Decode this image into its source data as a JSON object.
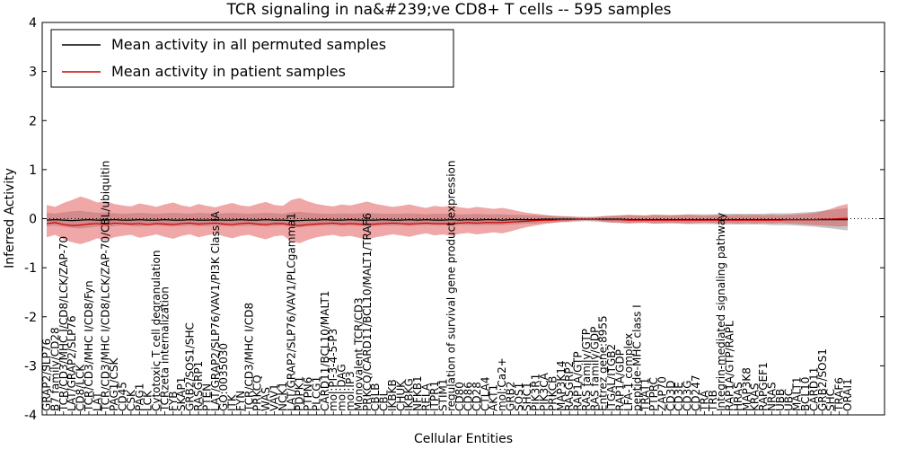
{
  "title": "TCR signaling in na&#239;ve CD8+ T cells -- 595 samples",
  "legend": {
    "permuted": "Mean activity in all permuted samples",
    "patient": "Mean activity in patient samples"
  },
  "axes": {
    "ylabel": "Inferred Activity",
    "xlabel": "Cellular Entities",
    "yticks": [
      4,
      3,
      2,
      1,
      0,
      -1,
      -2,
      -3,
      -4
    ]
  },
  "colors": {
    "permuted_line": "#000000",
    "patient_line": "#cc0000",
    "permuted_band": "#bbbbbb",
    "patient_band": "#e05050"
  },
  "chart_data": {
    "type": "line",
    "title": "TCR signaling in na&#239;ve CD8+ T cells -- 595 samples",
    "xlabel": "Cellular Entities",
    "ylabel": "Inferred Activity",
    "ylim": [
      -4,
      4
    ],
    "grid": false,
    "legend_position": "upper left",
    "categories": [
      "GRAP2/SLP76",
      "B7 family/CD28",
      "TCR/CD3/MHC I/CD8/LCK/ZAP-70",
      "LAT/GRAP2/SLP76",
      "CD8/LCK",
      "TCR/CD3/MHC I/CD8/Fyn",
      "LAT",
      "TCR/CD3/MHC I/CD8/LCK/ZAP-70/CBL/ubiquitin",
      "PAG1/CSK",
      "CD45",
      "CSK",
      "PAG1",
      "LCK",
      "Cytotoxic T cell degranulation",
      "TCRzeta internalization",
      "FYB",
      "SKAP1",
      "GRB2/SOS1/SHC",
      "RASGRP1",
      "PTEN",
      "LAT/GRAP2/SLP76/VAV1/PI3K Class IA",
      "GO:0035030",
      "ITK",
      "FYN",
      "TCR/CD3/MHC I/CD8",
      "PRKCQ",
      "WAS",
      "VAV1",
      "NCK1",
      "LAT/GRAP2/SLP76/VAV1/PLCgamma1",
      "PDPK1",
      "PTPN6",
      "PLCG1",
      "CARD11/BCL10/MALT1",
      "mol:PI-3-4-5-P3",
      "mol:DAG",
      "mol:IP3",
      "Monovalent TCR/CD3",
      "PRKCQ/CARD11/BCL10/MALT1/TRAF6",
      "CBLB",
      "CBL",
      "IKBKB",
      "CHUK",
      "IKBKG",
      "NFKB1",
      "RELA",
      "ITPR1",
      "STIM1",
      "regulation of survival gene product expression",
      "CD80",
      "CD86",
      "CD28",
      "CTLA4",
      "AKT1",
      "mol:Ca2+",
      "GRB2",
      "SOS1",
      "SHC1",
      "PIK3R1",
      "PIK3CA",
      "PRKCB",
      "MAP3K14",
      "RASGRP2",
      "RAP1A/GTP",
      "RAS family/GTP",
      "RAS family/GDP",
      "Entrez gene:8955",
      "ITGAL/ITGB2",
      "RAP1A/GDP",
      "LFA-1 complex",
      "peptide-MHC class I",
      "TRAT1",
      "PTPRC",
      "ZAP70",
      "CD3D",
      "CD3E",
      "CD3G",
      "CD247",
      "TRA",
      "TRB",
      "Integrin-mediated signaling pathway",
      "RAP1A/GTP/RAPL",
      "HRAS",
      "MAP3K8",
      "KRAS",
      "RAPGEF1",
      "NRAS",
      "UBB",
      "UBC",
      "MALT1",
      "BCL10",
      "CARD11",
      "GRB2/SOS1",
      "SHC",
      "TRAF6",
      "ORAI1"
    ],
    "series": [
      {
        "name": "Mean activity in all permuted samples",
        "color": "#000000",
        "values": [
          -0.03,
          -0.02,
          -0.03,
          -0.04,
          -0.03,
          -0.02,
          -0.03,
          -0.03,
          -0.02,
          -0.03,
          -0.03,
          -0.02,
          -0.03,
          -0.03,
          -0.02,
          -0.03,
          -0.03,
          -0.02,
          -0.03,
          -0.03,
          -0.02,
          -0.03,
          -0.03,
          -0.02,
          -0.03,
          -0.03,
          -0.02,
          -0.03,
          -0.03,
          -0.04,
          -0.04,
          -0.03,
          -0.03,
          -0.02,
          -0.03,
          -0.03,
          -0.02,
          -0.03,
          -0.03,
          -0.03,
          -0.02,
          -0.03,
          -0.03,
          -0.02,
          -0.03,
          -0.02,
          -0.03,
          -0.03,
          -0.02,
          -0.03,
          -0.02,
          -0.03,
          -0.02,
          -0.02,
          -0.03,
          -0.02,
          -0.02,
          -0.02,
          -0.02,
          -0.01,
          -0.01,
          -0.01,
          -0.01,
          -0.01,
          -0.01,
          -0.01,
          -0.01,
          -0.01,
          -0.01,
          -0.02,
          -0.02,
          -0.02,
          -0.02,
          -0.02,
          -0.02,
          -0.02,
          -0.02,
          -0.02,
          -0.02,
          -0.02,
          -0.02,
          -0.02,
          -0.02,
          -0.02,
          -0.02,
          -0.02,
          -0.02,
          -0.02,
          -0.02,
          -0.02,
          -0.02,
          -0.02,
          -0.02,
          -0.02,
          -0.02,
          -0.02
        ]
      },
      {
        "name": "Mean activity in patient samples",
        "color": "#cc0000",
        "values": [
          -0.1,
          -0.08,
          -0.12,
          -0.14,
          -0.13,
          -0.11,
          -0.1,
          -0.12,
          -0.09,
          -0.1,
          -0.11,
          -0.1,
          -0.12,
          -0.1,
          -0.11,
          -0.12,
          -0.1,
          -0.09,
          -0.11,
          -0.1,
          -0.09,
          -0.11,
          -0.12,
          -0.1,
          -0.09,
          -0.11,
          -0.12,
          -0.1,
          -0.1,
          -0.13,
          -0.14,
          -0.12,
          -0.11,
          -0.1,
          -0.09,
          -0.11,
          -0.1,
          -0.11,
          -0.12,
          -0.11,
          -0.1,
          -0.09,
          -0.1,
          -0.11,
          -0.1,
          -0.09,
          -0.1,
          -0.1,
          -0.1,
          -0.09,
          -0.08,
          -0.09,
          -0.08,
          -0.08,
          -0.08,
          -0.07,
          -0.06,
          -0.05,
          -0.04,
          -0.03,
          -0.03,
          -0.02,
          -0.02,
          -0.01,
          -0.01,
          -0.01,
          -0.02,
          -0.02,
          -0.02,
          -0.03,
          -0.03,
          -0.03,
          -0.03,
          -0.03,
          -0.03,
          -0.03,
          -0.03,
          -0.03,
          -0.03,
          -0.03,
          -0.03,
          -0.03,
          -0.03,
          -0.03,
          -0.03,
          -0.03,
          -0.03,
          -0.03,
          -0.02,
          -0.02,
          -0.02,
          -0.02,
          -0.01,
          -0.01,
          0.0,
          0.01
        ]
      }
    ],
    "bands": [
      {
        "name": "permuted-samples-confidence-band",
        "color": "#bbbbbb",
        "opacity": 0.85,
        "upper": [
          0.12,
          0.1,
          0.13,
          0.15,
          0.16,
          0.14,
          0.12,
          0.13,
          0.11,
          0.1,
          0.11,
          0.12,
          0.11,
          0.1,
          0.11,
          0.12,
          0.11,
          0.1,
          0.12,
          0.11,
          0.1,
          0.11,
          0.12,
          0.11,
          0.1,
          0.11,
          0.12,
          0.11,
          0.1,
          0.13,
          0.14,
          0.12,
          0.11,
          0.1,
          0.1,
          0.11,
          0.1,
          0.11,
          0.12,
          0.11,
          0.1,
          0.1,
          0.1,
          0.11,
          0.1,
          0.09,
          0.1,
          0.1,
          0.1,
          0.09,
          0.09,
          0.1,
          0.09,
          0.09,
          0.09,
          0.08,
          0.08,
          0.07,
          0.07,
          0.06,
          0.06,
          0.05,
          0.05,
          0.04,
          0.04,
          0.04,
          0.05,
          0.06,
          0.06,
          0.07,
          0.07,
          0.07,
          0.08,
          0.08,
          0.08,
          0.08,
          0.09,
          0.09,
          0.09,
          0.09,
          0.1,
          0.1,
          0.1,
          0.1,
          0.1,
          0.1,
          0.11,
          0.11,
          0.11,
          0.12,
          0.13,
          0.14,
          0.16,
          0.18,
          0.2,
          0.22
        ],
        "lower": [
          -0.16,
          -0.14,
          -0.17,
          -0.19,
          -0.2,
          -0.18,
          -0.16,
          -0.17,
          -0.15,
          -0.14,
          -0.15,
          -0.16,
          -0.15,
          -0.14,
          -0.15,
          -0.16,
          -0.15,
          -0.14,
          -0.16,
          -0.15,
          -0.14,
          -0.15,
          -0.16,
          -0.15,
          -0.14,
          -0.15,
          -0.16,
          -0.15,
          -0.14,
          -0.17,
          -0.18,
          -0.16,
          -0.15,
          -0.14,
          -0.14,
          -0.15,
          -0.14,
          -0.15,
          -0.16,
          -0.15,
          -0.14,
          -0.14,
          -0.14,
          -0.15,
          -0.14,
          -0.13,
          -0.14,
          -0.14,
          -0.14,
          -0.13,
          -0.13,
          -0.14,
          -0.13,
          -0.13,
          -0.13,
          -0.12,
          -0.11,
          -0.1,
          -0.1,
          -0.09,
          -0.08,
          -0.07,
          -0.07,
          -0.06,
          -0.05,
          -0.06,
          -0.07,
          -0.08,
          -0.08,
          -0.09,
          -0.09,
          -0.09,
          -0.1,
          -0.1,
          -0.1,
          -0.1,
          -0.11,
          -0.11,
          -0.11,
          -0.11,
          -0.12,
          -0.12,
          -0.12,
          -0.12,
          -0.12,
          -0.12,
          -0.13,
          -0.13,
          -0.13,
          -0.14,
          -0.15,
          -0.16,
          -0.18,
          -0.2,
          -0.22,
          -0.24
        ]
      },
      {
        "name": "patient-samples-confidence-band",
        "color": "#e05050",
        "opacity": 0.5,
        "upper": [
          0.28,
          0.24,
          0.32,
          0.38,
          0.45,
          0.4,
          0.33,
          0.36,
          0.3,
          0.27,
          0.25,
          0.31,
          0.28,
          0.24,
          0.29,
          0.33,
          0.27,
          0.24,
          0.3,
          0.26,
          0.23,
          0.28,
          0.32,
          0.27,
          0.25,
          0.3,
          0.34,
          0.28,
          0.26,
          0.38,
          0.42,
          0.35,
          0.3,
          0.27,
          0.25,
          0.29,
          0.27,
          0.31,
          0.35,
          0.3,
          0.27,
          0.24,
          0.26,
          0.29,
          0.25,
          0.22,
          0.26,
          0.24,
          0.27,
          0.23,
          0.21,
          0.24,
          0.22,
          0.2,
          0.22,
          0.19,
          0.15,
          0.12,
          0.1,
          0.08,
          0.06,
          0.05,
          0.04,
          0.03,
          0.02,
          0.03,
          0.05,
          0.06,
          0.07,
          0.08,
          0.07,
          0.06,
          0.08,
          0.07,
          0.06,
          0.07,
          0.08,
          0.07,
          0.06,
          0.07,
          0.08,
          0.07,
          0.08,
          0.07,
          0.08,
          0.07,
          0.08,
          0.07,
          0.08,
          0.09,
          0.1,
          0.12,
          0.15,
          0.2,
          0.26,
          0.3
        ],
        "lower": [
          -0.38,
          -0.33,
          -0.42,
          -0.48,
          -0.52,
          -0.47,
          -0.4,
          -0.44,
          -0.38,
          -0.35,
          -0.33,
          -0.39,
          -0.36,
          -0.32,
          -0.37,
          -0.41,
          -0.35,
          -0.32,
          -0.38,
          -0.34,
          -0.31,
          -0.36,
          -0.4,
          -0.35,
          -0.33,
          -0.38,
          -0.42,
          -0.36,
          -0.34,
          -0.46,
          -0.5,
          -0.43,
          -0.38,
          -0.35,
          -0.33,
          -0.37,
          -0.35,
          -0.39,
          -0.43,
          -0.38,
          -0.35,
          -0.32,
          -0.34,
          -0.37,
          -0.33,
          -0.3,
          -0.34,
          -0.32,
          -0.35,
          -0.31,
          -0.29,
          -0.32,
          -0.3,
          -0.28,
          -0.3,
          -0.26,
          -0.21,
          -0.17,
          -0.14,
          -0.11,
          -0.09,
          -0.07,
          -0.05,
          -0.04,
          -0.03,
          -0.04,
          -0.06,
          -0.08,
          -0.09,
          -0.1,
          -0.09,
          -0.08,
          -0.1,
          -0.09,
          -0.08,
          -0.09,
          -0.1,
          -0.09,
          -0.08,
          -0.09,
          -0.1,
          -0.09,
          -0.1,
          -0.09,
          -0.1,
          -0.09,
          -0.1,
          -0.09,
          -0.1,
          -0.11,
          -0.12,
          -0.13,
          -0.14,
          -0.15,
          -0.16,
          -0.15
        ]
      }
    ]
  }
}
